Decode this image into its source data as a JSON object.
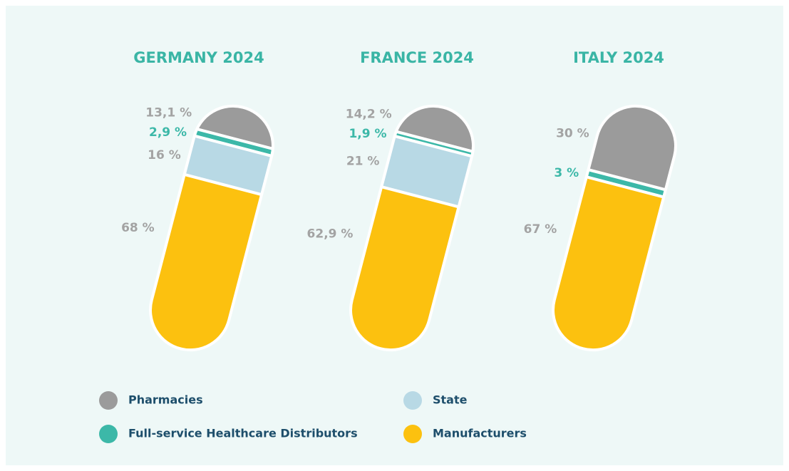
{
  "chart_data": {
    "type": "stacked_pill",
    "categories": [
      "GERMANY 2024",
      "FRANCE 2024",
      "ITALY 2024"
    ],
    "series": [
      {
        "name": "Pharmacies",
        "color": "#9b9b9b",
        "label_color": "#a3a3a3",
        "values": [
          13.1,
          14.2,
          30
        ],
        "value_labels": [
          "13,1 %",
          "14,2 %",
          "30 %"
        ]
      },
      {
        "name": "Full-service Healthcare Distributors",
        "color": "#3cb8a8",
        "label_color": "#3cb8a8",
        "values": [
          2.9,
          1.9,
          3
        ],
        "value_labels": [
          "2,9 %",
          "1,9 %",
          "3 %"
        ]
      },
      {
        "name": "State",
        "color": "#b8d9e5",
        "label_color": "#a3a3a3",
        "values": [
          16,
          21,
          null
        ],
        "value_labels": [
          "16 %",
          "21 %",
          null
        ]
      },
      {
        "name": "Manufacturers",
        "color": "#fcc10f",
        "label_color": "#a3a3a3",
        "values": [
          68,
          62.9,
          67
        ],
        "value_labels": [
          "68 %",
          "62,9 %",
          "67 %"
        ]
      }
    ]
  }
}
